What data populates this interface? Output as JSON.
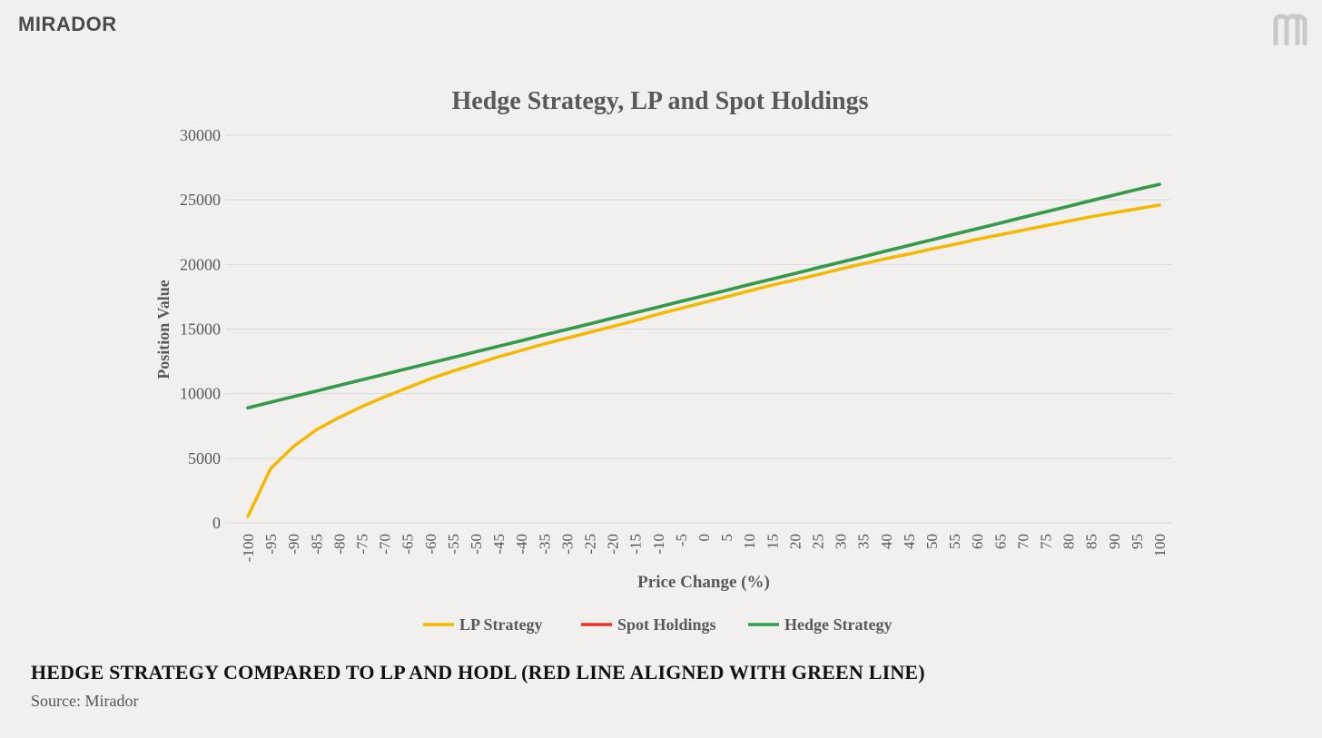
{
  "brand": {
    "name": "MIRADOR"
  },
  "caption": "HEDGE STRATEGY COMPARED TO LP AND HODL (RED LINE ALIGNED WITH GREEN LINE)",
  "source": "Source: Mirador",
  "chart_data": {
    "type": "line",
    "title": "Hedge Strategy, LP and Spot Holdings",
    "xlabel": "Price Change (%)",
    "ylabel": "Position Value",
    "x": [
      -100,
      -95,
      -90,
      -85,
      -80,
      -75,
      -70,
      -65,
      -60,
      -55,
      -50,
      -45,
      -40,
      -35,
      -30,
      -25,
      -20,
      -15,
      -10,
      -5,
      0,
      5,
      10,
      15,
      20,
      25,
      30,
      35,
      40,
      45,
      50,
      55,
      60,
      65,
      70,
      75,
      80,
      85,
      90,
      95,
      100
    ],
    "ylim": [
      0,
      30000
    ],
    "yticks": [
      0,
      5000,
      10000,
      15000,
      20000,
      25000,
      30000
    ],
    "grid": true,
    "legend_position": "bottom",
    "series": [
      {
        "name": "LP Strategy",
        "color": "#f5b800",
        "values": [
          500,
          4200,
          5900,
          7200,
          8150,
          9000,
          9750,
          10450,
          11150,
          11750,
          12300,
          12850,
          13350,
          13850,
          14300,
          14750,
          15200,
          15650,
          16150,
          16600,
          17050,
          17500,
          17950,
          18400,
          18800,
          19200,
          19650,
          20050,
          20450,
          20800,
          21200,
          21550,
          21950,
          22300,
          22650,
          23000,
          23350,
          23700,
          24000,
          24300,
          24600
        ]
      },
      {
        "name": "Spot Holdings",
        "color": "#e8332b",
        "values": [
          8900,
          9340,
          9770,
          10200,
          10640,
          11070,
          11500,
          11940,
          12370,
          12800,
          13240,
          13670,
          14100,
          14540,
          14970,
          15400,
          15840,
          16270,
          16700,
          17140,
          17570,
          18000,
          18440,
          18870,
          19300,
          19740,
          20170,
          20600,
          21040,
          21470,
          21900,
          22340,
          22770,
          23200,
          23640,
          24070,
          24500,
          24940,
          25370,
          25800,
          26200
        ]
      },
      {
        "name": "Hedge Strategy",
        "color": "#2e9e4a",
        "values": [
          8900,
          9340,
          9770,
          10200,
          10640,
          11070,
          11500,
          11940,
          12370,
          12800,
          13240,
          13670,
          14100,
          14540,
          14970,
          15400,
          15840,
          16270,
          16700,
          17140,
          17570,
          18000,
          18440,
          18870,
          19300,
          19740,
          20170,
          20600,
          21040,
          21470,
          21900,
          22340,
          22770,
          23200,
          23640,
          24070,
          24500,
          24940,
          25370,
          25800,
          26200
        ]
      }
    ]
  }
}
